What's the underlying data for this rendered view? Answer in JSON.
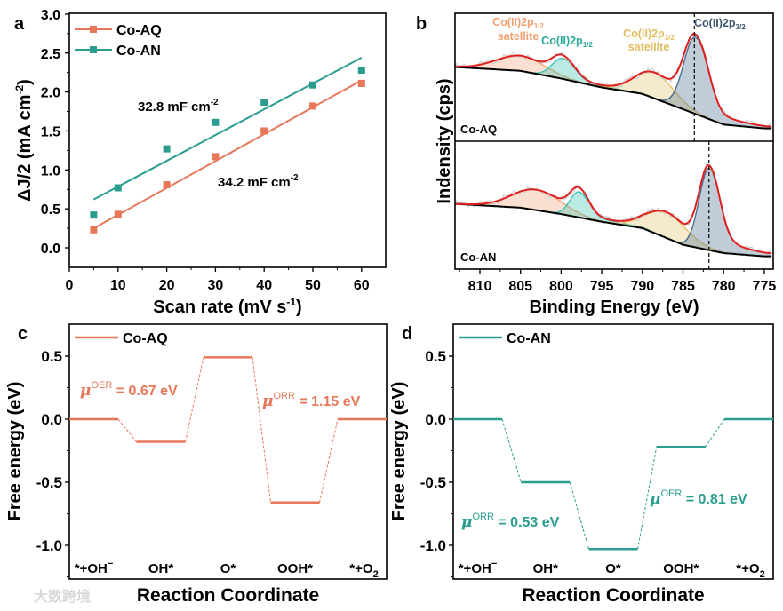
{
  "watermark": "大数跨境",
  "chart_data": [
    {
      "panel": "a",
      "type": "scatter",
      "xlabel": [
        "Scan rate (mV s",
        "-1",
        ")"
      ],
      "ylabel": [
        "ΔJ/2 (mA cm",
        "-2",
        ")"
      ],
      "xlim": [
        0,
        65
      ],
      "ylim": [
        -0.25,
        3.0
      ],
      "xticks": [
        0,
        10,
        20,
        30,
        40,
        50,
        60
      ],
      "yticks": [
        0.0,
        0.5,
        1.0,
        1.5,
        2.0,
        2.5,
        3.0
      ],
      "ytick_labels": [
        "0.0",
        "0.5",
        "1.0",
        "1.5",
        "2.0",
        "2.5",
        "3.0"
      ],
      "legend_placement": "top-left",
      "series": [
        {
          "name": "Co-AQ",
          "color": "#e8775a",
          "x": [
            5,
            10,
            20,
            30,
            40,
            50,
            60
          ],
          "y": [
            0.23,
            0.43,
            0.81,
            1.17,
            1.5,
            1.82,
            2.11
          ],
          "fit": [
            [
              5,
              0.25
            ],
            [
              60,
              2.15
            ]
          ],
          "annotation": [
            "34.2 mF cm",
            "-2"
          ]
        },
        {
          "name": "Co-AN",
          "color": "#2a9d8f",
          "x": [
            5,
            10,
            20,
            30,
            40,
            50,
            60
          ],
          "y": [
            0.42,
            0.77,
            1.27,
            1.61,
            1.87,
            2.09,
            2.28
          ],
          "fit": [
            [
              5,
              0.62
            ],
            [
              60,
              2.44
            ]
          ],
          "annotation": [
            "32.8 mF cm",
            "-2"
          ]
        }
      ]
    },
    {
      "panel": "b",
      "type": "line",
      "xlabel": "Binding Energy (eV)",
      "ylabel": "Indensity (cps)",
      "xlim": [
        813.1,
        773.9
      ],
      "xticks": [
        810,
        805,
        800,
        795,
        790,
        785,
        780,
        775
      ],
      "envelope_color": "#e02020",
      "component_labels": [
        {
          "text": "Co(II)2p",
          "sub": "1/2",
          "line2": "satellite",
          "color": "#f0a070"
        },
        {
          "text": "Co(II)2p",
          "sub": "1/2",
          "line2": "",
          "color": "#2aa898"
        },
        {
          "text": "Co(II)2p",
          "sub": "3/2",
          "line2": "satellite",
          "color": "#e2bd62"
        },
        {
          "text": "Co(II)2p",
          "sub": "3/2",
          "line2": "",
          "color": "#3b5670"
        }
      ],
      "component_colors": [
        "#f4a67a",
        "#3cc4b0",
        "#e6c46e",
        "#4a6f8f"
      ],
      "samples": [
        {
          "name": "Co-AQ",
          "dashed_line_eV": 783.6,
          "background": [
            [
              813.1,
              0.58
            ],
            [
              805,
              0.55
            ],
            [
              800,
              0.49
            ],
            [
              795,
              0.42
            ],
            [
              790,
              0.37
            ],
            [
              785,
              0.25
            ],
            [
              780,
              0.13
            ],
            [
              775,
              0.1
            ],
            [
              773.9,
              0.1
            ]
          ],
          "peaks": [
            {
              "center": 805,
              "height": 0.12,
              "sigma": 3.0
            },
            {
              "center": 799.8,
              "height": 0.16,
              "sigma": 1.3
            },
            {
              "center": 788.5,
              "height": 0.2,
              "sigma": 2.4
            },
            {
              "center": 783.5,
              "height": 0.6,
              "sigma": 1.4
            }
          ]
        },
        {
          "name": "Co-AN",
          "dashed_line_eV": 781.8,
          "background": [
            [
              813.1,
              0.51
            ],
            [
              805,
              0.48
            ],
            [
              800,
              0.43
            ],
            [
              795,
              0.37
            ],
            [
              790,
              0.32
            ],
            [
              785,
              0.19
            ],
            [
              780,
              0.125
            ],
            [
              775,
              0.1
            ],
            [
              773.9,
              0.1
            ]
          ],
          "peaks": [
            {
              "center": 803,
              "height": 0.16,
              "sigma": 3.0
            },
            {
              "center": 797.8,
              "height": 0.2,
              "sigma": 1.1
            },
            {
              "center": 787,
              "height": 0.2,
              "sigma": 2.5
            },
            {
              "center": 781.8,
              "height": 0.64,
              "sigma": 1.2
            }
          ]
        }
      ]
    },
    {
      "panel": "c",
      "type": "line",
      "name": "Co-AQ",
      "color": "#e8775a",
      "xlabel": "Reaction Coordinate",
      "ylabel": "Free energy (eV)",
      "ylim": [
        -1.27,
        0.75
      ],
      "yticks": [
        0.5,
        0.0,
        -0.5,
        -1.0
      ],
      "ytick_labels": [
        "0.5",
        "0.0",
        "-0.5",
        "-1.0"
      ],
      "steps": [
        [
          "*+OH",
          "−"
        ],
        [
          "OH*",
          ""
        ],
        [
          "O*",
          ""
        ],
        [
          "OOH*",
          ""
        ],
        [
          "*+O",
          "2"
        ]
      ],
      "energies": [
        0.0,
        -0.18,
        0.49,
        -0.66,
        0.0
      ],
      "annotations": [
        {
          "mu": "μ",
          "sup": "OER",
          "text": " = 0.67 eV"
        },
        {
          "mu": "μ",
          "sup": "ORR",
          "text": " = 1.15 eV"
        }
      ]
    },
    {
      "panel": "d",
      "type": "line",
      "name": "Co-AN",
      "color": "#2a9d8f",
      "xlabel": "Reaction Coordinate",
      "ylabel": "Free energy (eV)",
      "ylim": [
        -1.27,
        0.75
      ],
      "yticks": [
        0.5,
        0.0,
        -0.5,
        -1.0
      ],
      "ytick_labels": [
        "0.5",
        "0.0",
        "-0.5",
        "-1.0"
      ],
      "steps": [
        [
          "*+OH",
          "−"
        ],
        [
          "OH*",
          ""
        ],
        [
          "O*",
          ""
        ],
        [
          "OOH*",
          ""
        ],
        [
          "*+O",
          "2"
        ]
      ],
      "energies": [
        0.0,
        -0.5,
        -1.03,
        -0.22,
        0.0
      ],
      "annotations": [
        {
          "mu": "μ",
          "sup": "ORR",
          "text": " = 0.53 eV"
        },
        {
          "mu": "μ",
          "sup": "OER",
          "text": " = 0.81 eV"
        }
      ]
    }
  ]
}
